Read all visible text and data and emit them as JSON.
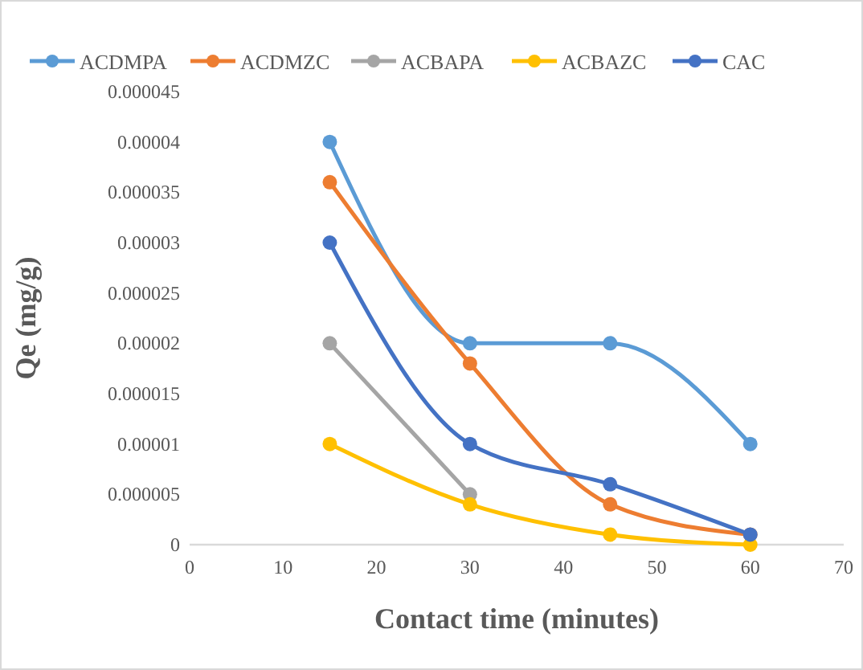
{
  "chart_data": {
    "type": "line",
    "xlabel": "Contact time (minutes)",
    "ylabel": "Qe (mg/g)",
    "x": [
      15,
      30,
      45,
      60
    ],
    "series": [
      {
        "name": "ACDMPA",
        "color": "#5b9bd5",
        "values": [
          4e-05,
          2e-05,
          2e-05,
          1e-05
        ]
      },
      {
        "name": "ACDMZC",
        "color": "#ed7d31",
        "values": [
          3.6e-05,
          1.8e-05,
          4e-06,
          1e-06
        ]
      },
      {
        "name": "ACBAPA",
        "color": "#a5a5a5",
        "values": [
          2e-05,
          5e-06,
          null,
          null
        ]
      },
      {
        "name": "ACBAZC",
        "color": "#ffc000",
        "values": [
          1e-05,
          4e-06,
          1e-06,
          0
        ]
      },
      {
        "name": "CAC",
        "color": "#4472c4",
        "values": [
          3e-05,
          1e-05,
          6e-06,
          1e-06
        ]
      }
    ],
    "xlim": [
      0,
      70
    ],
    "xticks": [
      0,
      10,
      20,
      30,
      40,
      50,
      60,
      70
    ],
    "ylim": [
      0,
      4.5e-05
    ],
    "yticks": [
      0,
      {
        "value": 5e-06,
        "label": "0.000005"
      },
      {
        "value": 1e-05,
        "label": "0.00001"
      },
      {
        "value": 1.5e-05,
        "label": "0.000015"
      },
      {
        "value": 2e-05,
        "label": "0.00002"
      },
      {
        "value": 2.5e-05,
        "label": "0.000025"
      },
      {
        "value": 3e-05,
        "label": "0.00003"
      },
      {
        "value": 3.5e-05,
        "label": "0.000035"
      },
      {
        "value": 4e-05,
        "label": "0.00004"
      },
      {
        "value": 4.5e-05,
        "label": "0.000045"
      }
    ],
    "legend": "top",
    "marker": "circle",
    "grid": false
  }
}
